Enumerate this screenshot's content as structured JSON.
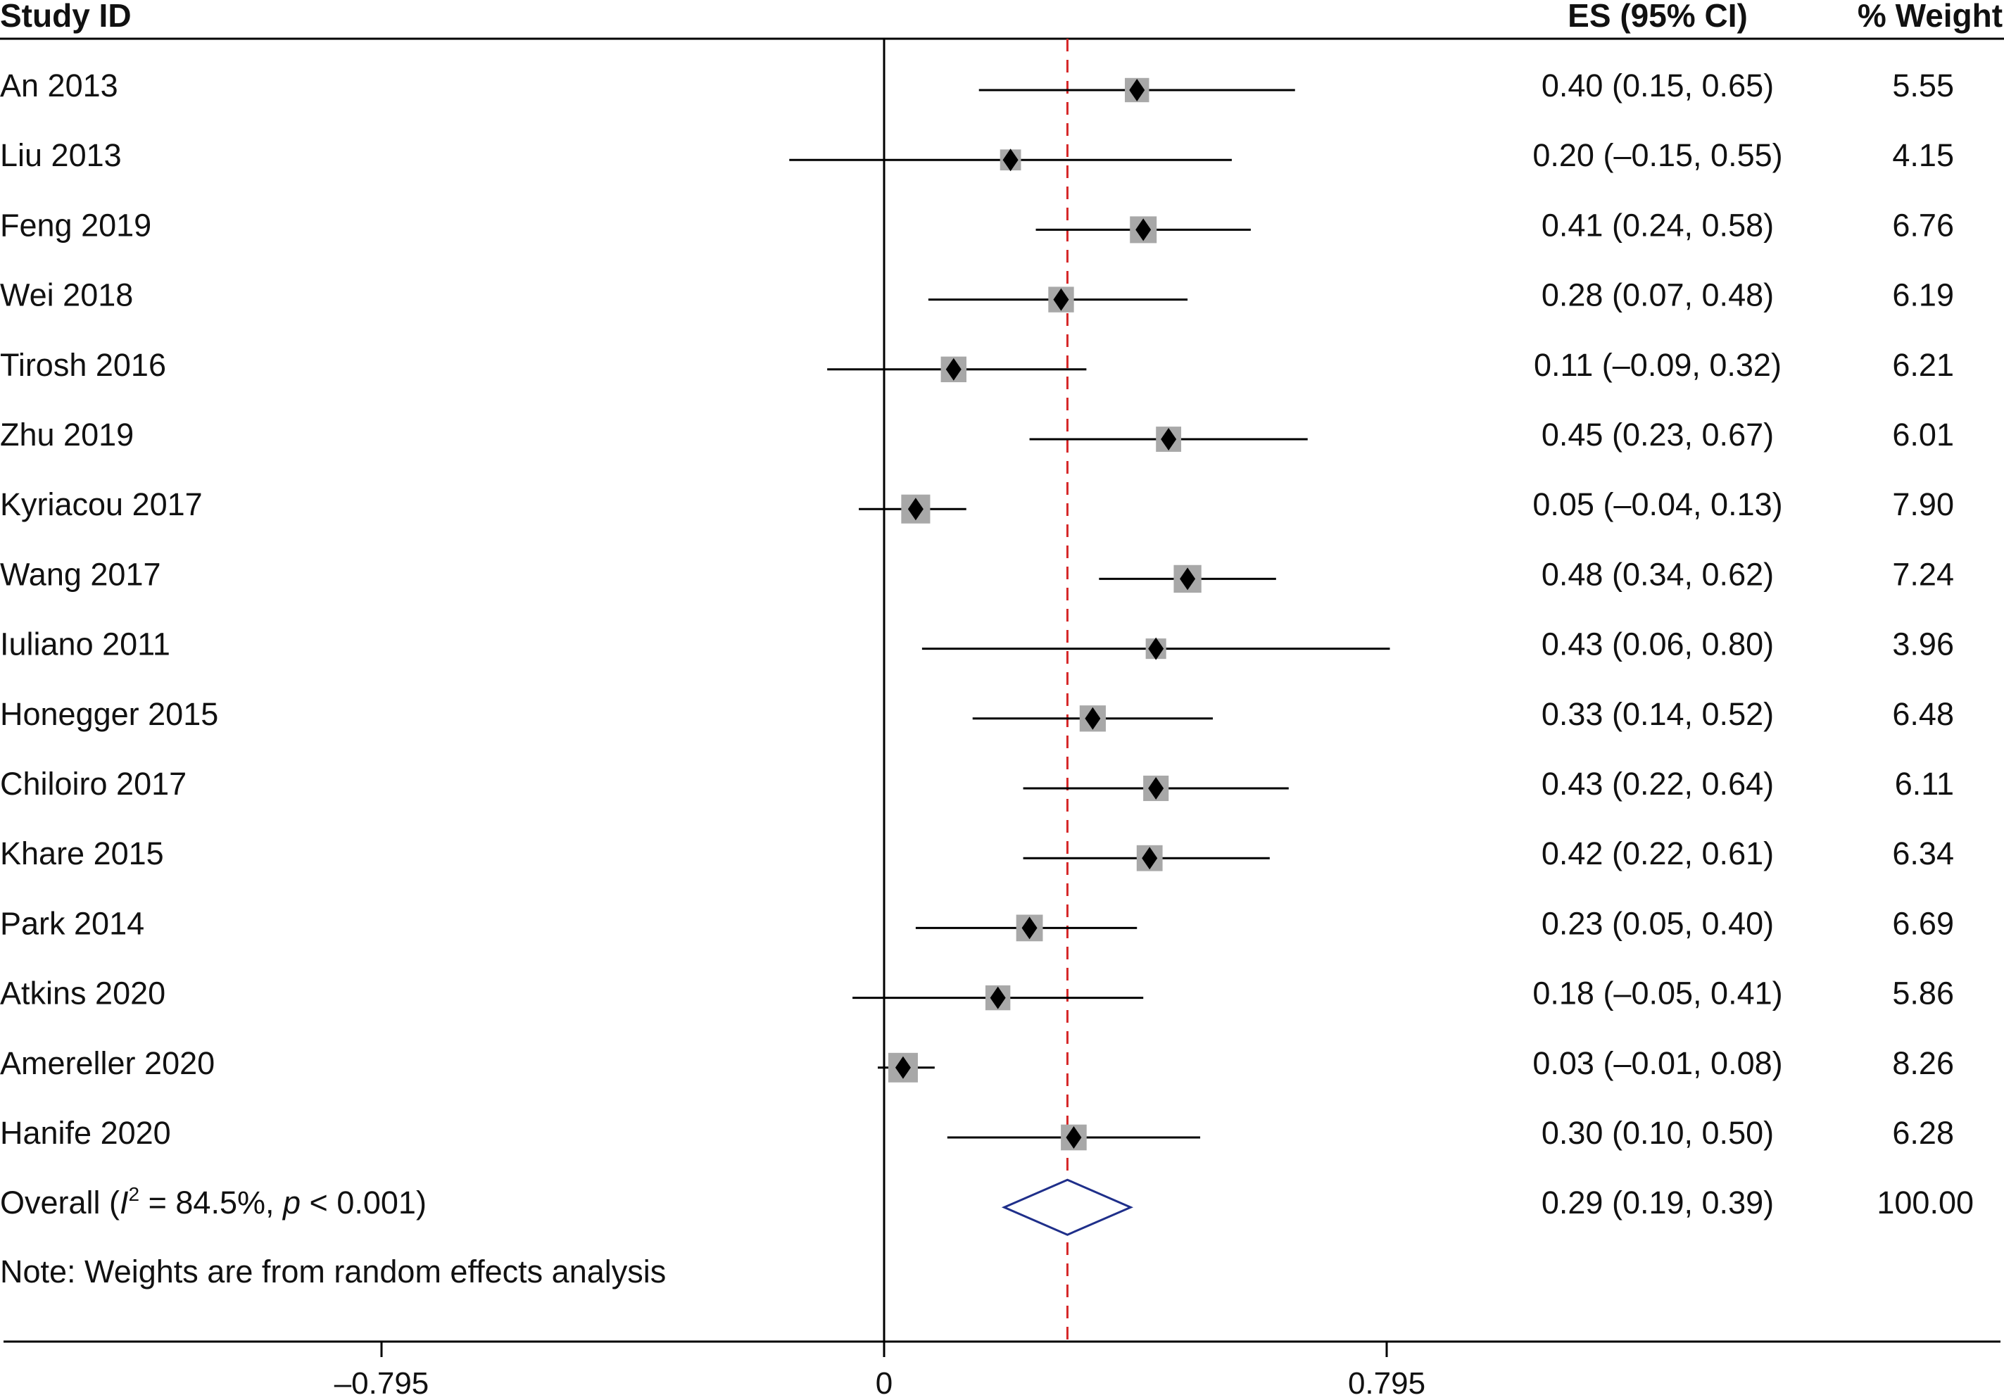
{
  "chart_data": {
    "type": "forest",
    "headers": {
      "study": "Study ID",
      "es": "ES (95% CI)",
      "weight": "% Weight"
    },
    "studies": [
      {
        "name": "An 2013",
        "es": 0.4,
        "lo": 0.15,
        "hi": 0.65,
        "es_text": "0.40 (0.15, 0.65)",
        "weight": 5.55,
        "weight_text": "5.55"
      },
      {
        "name": "Liu 2013",
        "es": 0.2,
        "lo": -0.15,
        "hi": 0.55,
        "es_text": "0.20 (–0.15, 0.55)",
        "weight": 4.15,
        "weight_text": "4.15"
      },
      {
        "name": "Feng 2019",
        "es": 0.41,
        "lo": 0.24,
        "hi": 0.58,
        "es_text": "0.41 (0.24, 0.58)",
        "weight": 6.76,
        "weight_text": "6.76"
      },
      {
        "name": "Wei 2018",
        "es": 0.28,
        "lo": 0.07,
        "hi": 0.48,
        "es_text": "0.28 (0.07, 0.48)",
        "weight": 6.19,
        "weight_text": "6.19"
      },
      {
        "name": "Tirosh 2016",
        "es": 0.11,
        "lo": -0.09,
        "hi": 0.32,
        "es_text": "0.11 (–0.09, 0.32)",
        "weight": 6.21,
        "weight_text": "6.21"
      },
      {
        "name": "Zhu 2019",
        "es": 0.45,
        "lo": 0.23,
        "hi": 0.67,
        "es_text": "0.45 (0.23, 0.67)",
        "weight": 6.01,
        "weight_text": "6.01"
      },
      {
        "name": "Kyriacou 2017",
        "es": 0.05,
        "lo": -0.04,
        "hi": 0.13,
        "es_text": "0.05 (–0.04, 0.13)",
        "weight": 7.9,
        "weight_text": "7.90"
      },
      {
        "name": "Wang 2017",
        "es": 0.48,
        "lo": 0.34,
        "hi": 0.62,
        "es_text": "0.48 (0.34, 0.62)",
        "weight": 7.24,
        "weight_text": "7.24"
      },
      {
        "name": "Iuliano 2011",
        "es": 0.43,
        "lo": 0.06,
        "hi": 0.8,
        "es_text": "0.43 (0.06, 0.80)",
        "weight": 3.96,
        "weight_text": "3.96"
      },
      {
        "name": "Honegger 2015",
        "es": 0.33,
        "lo": 0.14,
        "hi": 0.52,
        "es_text": "0.33 (0.14, 0.52)",
        "weight": 6.48,
        "weight_text": "6.48"
      },
      {
        "name": "Chiloiro 2017",
        "es": 0.43,
        "lo": 0.22,
        "hi": 0.64,
        "es_text": "0.43 (0.22, 0.64)",
        "weight": 6.11,
        "weight_text": "6.11"
      },
      {
        "name": "Khare 2015",
        "es": 0.42,
        "lo": 0.22,
        "hi": 0.61,
        "es_text": "0.42 (0.22, 0.61)",
        "weight": 6.34,
        "weight_text": "6.34"
      },
      {
        "name": "Park 2014",
        "es": 0.23,
        "lo": 0.05,
        "hi": 0.4,
        "es_text": "0.23 (0.05, 0.40)",
        "weight": 6.69,
        "weight_text": "6.69"
      },
      {
        "name": "Atkins 2020",
        "es": 0.18,
        "lo": -0.05,
        "hi": 0.41,
        "es_text": "0.18 (–0.05, 0.41)",
        "weight": 5.86,
        "weight_text": "5.86"
      },
      {
        "name": "Amereller 2020",
        "es": 0.03,
        "lo": -0.01,
        "hi": 0.08,
        "es_text": "0.03 (–0.01, 0.08)",
        "weight": 8.26,
        "weight_text": "8.26"
      },
      {
        "name": "Hanife 2020",
        "es": 0.3,
        "lo": 0.1,
        "hi": 0.5,
        "es_text": "0.30 (0.10, 0.50)",
        "weight": 6.28,
        "weight_text": "6.28"
      }
    ],
    "overall": {
      "label_prefix": "Overall (",
      "i2_symbol": "I",
      "i2_superscript": "2",
      "label_mid": " = 84.5%, ",
      "p_symbol": "p",
      "label_suffix": " < 0.001)",
      "es": 0.29,
      "lo": 0.19,
      "hi": 0.39,
      "es_text": "0.29 (0.19, 0.39)",
      "weight_text": "100.00"
    },
    "note": "Note: Weights are from random effects analysis",
    "x_ticks": [
      {
        "value": -0.795,
        "label": "–0.795"
      },
      {
        "value": 0,
        "label": "0"
      },
      {
        "value": 0.795,
        "label": "0.795"
      }
    ],
    "xlim": [
      -1.4,
      1.77
    ],
    "null_line": 0,
    "overall_line": 0.29,
    "colors": {
      "box": "#a8a8a8",
      "marker": "#000000",
      "ci_line": "#000000",
      "overall_line": "#d62728",
      "diamond": "#1f2f8a",
      "axis": "#000000",
      "text": "#111111"
    }
  }
}
